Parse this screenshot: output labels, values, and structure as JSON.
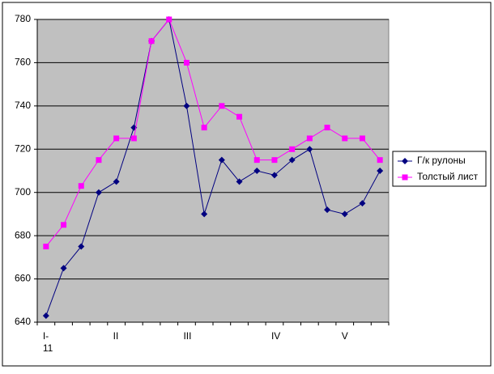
{
  "chart_data": {
    "type": "line",
    "categories": [
      "I-11",
      null,
      null,
      null,
      "II",
      null,
      null,
      null,
      "III",
      null,
      null,
      null,
      null,
      "IV",
      null,
      null,
      null,
      "V",
      null,
      null
    ],
    "series": [
      {
        "name": "Г/к рулоны",
        "color": "#000080",
        "marker": "diamond",
        "values": [
          643,
          665,
          675,
          700,
          705,
          730,
          770,
          780,
          740,
          690,
          715,
          705,
          710,
          708,
          715,
          720,
          692,
          690,
          695,
          710
        ]
      },
      {
        "name": "Толстый лист",
        "color": "#ff00ff",
        "marker": "square",
        "values": [
          675,
          685,
          703,
          715,
          725,
          725,
          770,
          780,
          760,
          730,
          740,
          735,
          715,
          715,
          720,
          725,
          730,
          725,
          725,
          715
        ]
      }
    ],
    "ylim": [
      640,
      780
    ],
    "yticks": [
      640,
      660,
      680,
      700,
      720,
      740,
      760,
      780
    ],
    "grid": true,
    "legend": "right"
  }
}
